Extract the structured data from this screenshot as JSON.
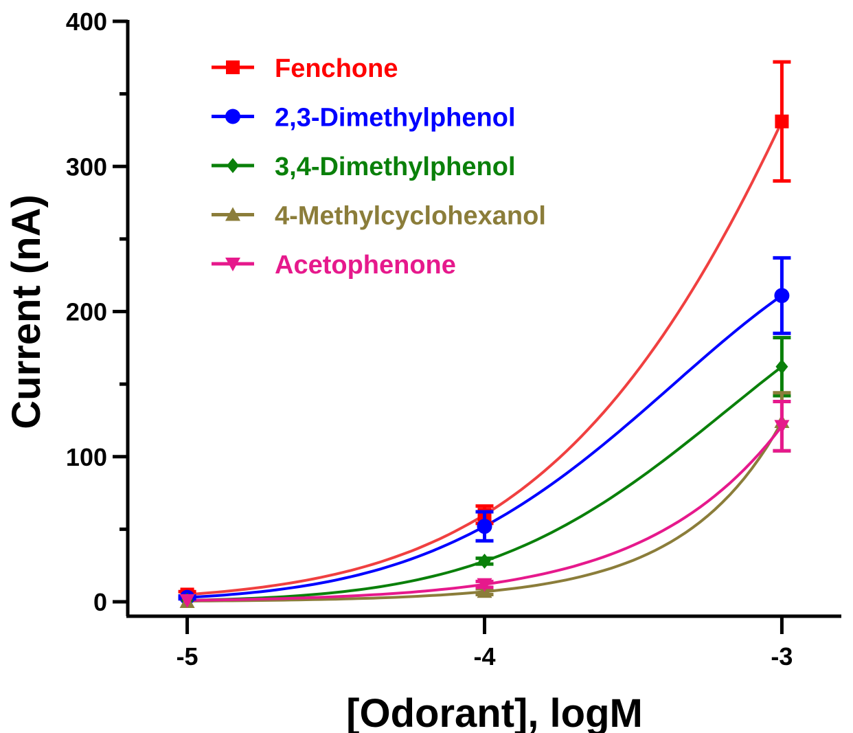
{
  "chart_data": {
    "type": "line",
    "xlabel": "[Odorant], logM",
    "ylabel": "Current (nA)",
    "xlim": [
      -5.2,
      -2.8
    ],
    "ylim": [
      0,
      400
    ],
    "x_ticks": [
      -5,
      -4,
      -3
    ],
    "x_tick_labels": [
      "-5",
      "-4",
      "-3"
    ],
    "y_ticks": [
      0,
      100,
      200,
      300,
      400
    ],
    "y_tick_labels": [
      "0",
      "100",
      "200",
      "300",
      "400"
    ],
    "y_minor_step": 50,
    "legend_position": "top-left",
    "grid": false,
    "series": [
      {
        "name": "Fenchone",
        "color": "#ff0000",
        "line_color": "#f04040",
        "marker": "square",
        "x": [
          -5,
          -4,
          -3
        ],
        "y": [
          5,
          60,
          331
        ],
        "err": [
          2,
          6,
          41
        ]
      },
      {
        "name": "2,3-Dimethylphenol",
        "color": "#0000ff",
        "line_color": "#0000ff",
        "marker": "circle",
        "x": [
          -5,
          -4,
          -3
        ],
        "y": [
          3,
          52,
          211
        ],
        "err": [
          1,
          10,
          26
        ]
      },
      {
        "name": "3,4-Dimethylphenol",
        "color": "#0a800a",
        "line_color": "#0a800a",
        "marker": "diamond",
        "x": [
          -5,
          -4,
          -3
        ],
        "y": [
          1,
          28,
          162
        ],
        "err": [
          0,
          2,
          20
        ]
      },
      {
        "name": "4-Methylcyclohexanol",
        "color": "#8b7d3a",
        "line_color": "#8b7d3a",
        "marker": "triangle-up",
        "x": [
          -5,
          -4,
          -3
        ],
        "y": [
          0,
          7,
          124
        ],
        "err": [
          0,
          2,
          20
        ]
      },
      {
        "name": "Acetophenone",
        "color": "#e6198c",
        "line_color": "#e6198c",
        "marker": "triangle-down",
        "x": [
          -5,
          -4,
          -3
        ],
        "y": [
          1,
          12,
          121
        ],
        "err": [
          0,
          2,
          17
        ]
      }
    ]
  }
}
